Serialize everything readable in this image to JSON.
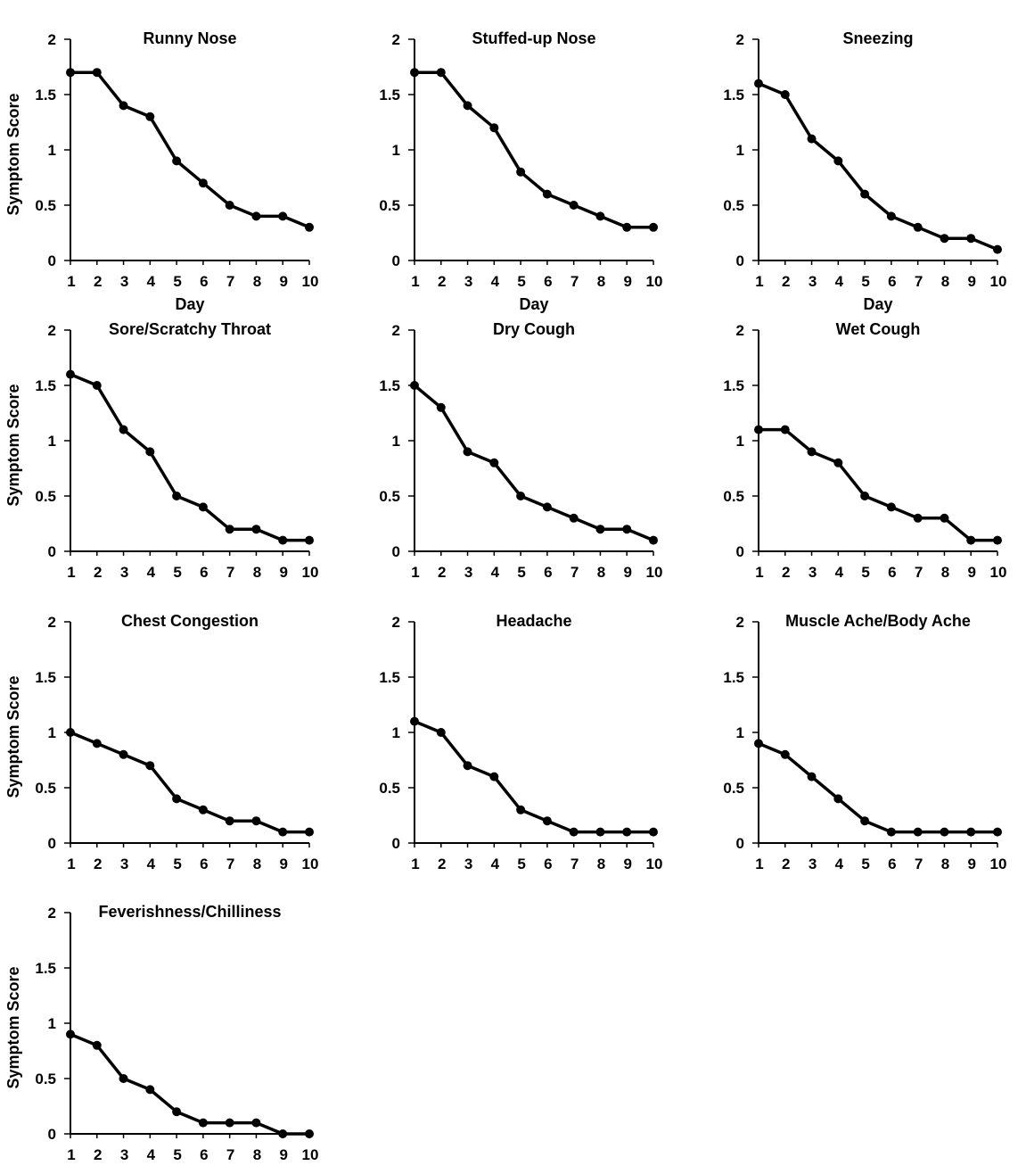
{
  "colors": {
    "line": "#000000",
    "background": "#ffffff"
  },
  "chart_data": [
    {
      "type": "line",
      "title": "Runny Nose",
      "xlabel": "Day",
      "ylabel": "Symptom Score",
      "x": [
        1,
        2,
        3,
        4,
        5,
        6,
        7,
        8,
        9,
        10
      ],
      "values": [
        1.7,
        1.7,
        1.4,
        1.3,
        0.9,
        0.7,
        0.5,
        0.4,
        0.4,
        0.3
      ],
      "xticks": [
        "1",
        "2",
        "3",
        "4",
        "5",
        "6",
        "7",
        "8",
        "9",
        "10"
      ],
      "yticks": [
        "0",
        "0.5",
        "1",
        "1.5",
        "2"
      ],
      "ylim": [
        0,
        2
      ]
    },
    {
      "type": "line",
      "title": "Stuffed-up Nose",
      "xlabel": "Day",
      "ylabel": "",
      "x": [
        1,
        2,
        3,
        4,
        5,
        6,
        7,
        8,
        9,
        10
      ],
      "values": [
        1.7,
        1.7,
        1.4,
        1.2,
        0.8,
        0.6,
        0.5,
        0.4,
        0.3,
        0.3
      ],
      "xticks": [
        "1",
        "2",
        "3",
        "4",
        "5",
        "6",
        "7",
        "8",
        "9",
        "10"
      ],
      "yticks": [
        "0",
        "0.5",
        "1",
        "1.5",
        "2"
      ],
      "ylim": [
        0,
        2
      ]
    },
    {
      "type": "line",
      "title": "Sneezing",
      "xlabel": "Day",
      "ylabel": "",
      "x": [
        1,
        2,
        3,
        4,
        5,
        6,
        7,
        8,
        9,
        10
      ],
      "values": [
        1.6,
        1.5,
        1.1,
        0.9,
        0.6,
        0.4,
        0.3,
        0.2,
        0.2,
        0.1
      ],
      "xticks": [
        "1",
        "2",
        "3",
        "4",
        "5",
        "6",
        "7",
        "8",
        "9",
        "10"
      ],
      "yticks": [
        "0",
        "0.5",
        "1",
        "1.5",
        "2"
      ],
      "ylim": [
        0,
        2
      ]
    },
    {
      "type": "line",
      "title": "Sore/Scratchy Throat",
      "xlabel": "",
      "ylabel": "Symptom Score",
      "x": [
        1,
        2,
        3,
        4,
        5,
        6,
        7,
        8,
        9,
        10
      ],
      "values": [
        1.6,
        1.5,
        1.1,
        0.9,
        0.5,
        0.4,
        0.2,
        0.2,
        0.1,
        0.1
      ],
      "xticks": [
        "1",
        "2",
        "3",
        "4",
        "5",
        "6",
        "7",
        "8",
        "9",
        "10"
      ],
      "yticks": [
        "0",
        "0.5",
        "1",
        "1.5",
        "2"
      ],
      "ylim": [
        0,
        2
      ]
    },
    {
      "type": "line",
      "title": "Dry Cough",
      "xlabel": "",
      "ylabel": "",
      "x": [
        1,
        2,
        3,
        4,
        5,
        6,
        7,
        8,
        9,
        10
      ],
      "values": [
        1.5,
        1.3,
        0.9,
        0.8,
        0.5,
        0.4,
        0.3,
        0.2,
        0.2,
        0.1
      ],
      "xticks": [
        "1",
        "2",
        "3",
        "4",
        "5",
        "6",
        "7",
        "8",
        "9",
        "10"
      ],
      "yticks": [
        "0",
        "0.5",
        "1",
        "1.5",
        "2"
      ],
      "ylim": [
        0,
        2
      ]
    },
    {
      "type": "line",
      "title": "Wet Cough",
      "xlabel": "",
      "ylabel": "",
      "x": [
        1,
        2,
        3,
        4,
        5,
        6,
        7,
        8,
        9,
        10
      ],
      "values": [
        1.1,
        1.1,
        0.9,
        0.8,
        0.5,
        0.4,
        0.3,
        0.3,
        0.1,
        0.1
      ],
      "xticks": [
        "1",
        "2",
        "3",
        "4",
        "5",
        "6",
        "7",
        "8",
        "9",
        "10"
      ],
      "yticks": [
        "0",
        "0.5",
        "1",
        "1.5",
        "2"
      ],
      "ylim": [
        0,
        2
      ]
    },
    {
      "type": "line",
      "title": "Chest Congestion",
      "xlabel": "",
      "ylabel": "Symptom Score",
      "x": [
        1,
        2,
        3,
        4,
        5,
        6,
        7,
        8,
        9,
        10
      ],
      "values": [
        1.0,
        0.9,
        0.8,
        0.7,
        0.4,
        0.3,
        0.2,
        0.2,
        0.1,
        0.1
      ],
      "xticks": [
        "1",
        "2",
        "3",
        "4",
        "5",
        "6",
        "7",
        "8",
        "9",
        "10"
      ],
      "yticks": [
        "0",
        "0.5",
        "1",
        "1.5",
        "2"
      ],
      "ylim": [
        0,
        2
      ]
    },
    {
      "type": "line",
      "title": "Headache",
      "xlabel": "",
      "ylabel": "",
      "x": [
        1,
        2,
        3,
        4,
        5,
        6,
        7,
        8,
        9,
        10
      ],
      "values": [
        1.1,
        1.0,
        0.7,
        0.6,
        0.3,
        0.2,
        0.1,
        0.1,
        0.1,
        0.1
      ],
      "xticks": [
        "1",
        "2",
        "3",
        "4",
        "5",
        "6",
        "7",
        "8",
        "9",
        "10"
      ],
      "yticks": [
        "0",
        "0.5",
        "1",
        "1.5",
        "2"
      ],
      "ylim": [
        0,
        2
      ]
    },
    {
      "type": "line",
      "title": "Muscle Ache/Body Ache",
      "xlabel": "",
      "ylabel": "",
      "x": [
        1,
        2,
        3,
        4,
        5,
        6,
        7,
        8,
        9,
        10
      ],
      "values": [
        0.9,
        0.8,
        0.6,
        0.4,
        0.2,
        0.1,
        0.1,
        0.1,
        0.1,
        0.1
      ],
      "xticks": [
        "1",
        "2",
        "3",
        "4",
        "5",
        "6",
        "7",
        "8",
        "9",
        "10"
      ],
      "yticks": [
        "0",
        "0.5",
        "1",
        "1.5",
        "2"
      ],
      "ylim": [
        0,
        2
      ]
    },
    {
      "type": "line",
      "title": "Feverishness/Chilliness",
      "xlabel": "",
      "ylabel": "Symptom Score",
      "x": [
        1,
        2,
        3,
        4,
        5,
        6,
        7,
        8,
        9,
        10
      ],
      "values": [
        0.9,
        0.8,
        0.5,
        0.4,
        0.2,
        0.1,
        0.1,
        0.1,
        0.0,
        0.0
      ],
      "xticks": [
        "1",
        "2",
        "3",
        "4",
        "5",
        "6",
        "7",
        "8",
        "9",
        "10"
      ],
      "yticks": [
        "0",
        "0.5",
        "1",
        "1.5",
        "2"
      ],
      "ylim": [
        0,
        2
      ]
    }
  ]
}
